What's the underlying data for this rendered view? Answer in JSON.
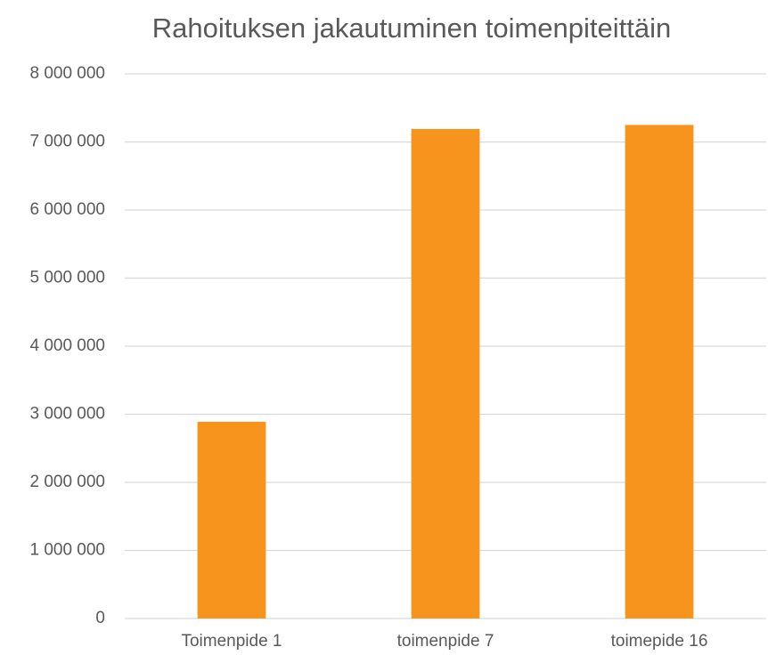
{
  "chart_data": {
    "type": "bar",
    "title": "Rahoituksen jakautuminen toimenpiteittäin",
    "categories": [
      "Toimenpide 1",
      "toimenpide 7",
      "toimepide 16"
    ],
    "values": [
      2890000,
      7190000,
      7250000
    ],
    "color": "#f7941d",
    "ylim": [
      0,
      8000000
    ],
    "yticks": [
      0,
      {
        "value": 1000000,
        "label": "1 000 000"
      },
      {
        "value": 2000000,
        "label": "2 000 000"
      },
      {
        "value": 3000000,
        "label": "3 000 000"
      },
      {
        "value": 4000000,
        "label": "4 000 000"
      },
      {
        "value": 5000000,
        "label": "5 000 000"
      },
      {
        "value": 6000000,
        "label": "6 000 000"
      },
      {
        "value": 7000000,
        "label": "7 000 000"
      },
      {
        "value": 8000000,
        "label": "8 000 000"
      }
    ],
    "grid": true
  }
}
